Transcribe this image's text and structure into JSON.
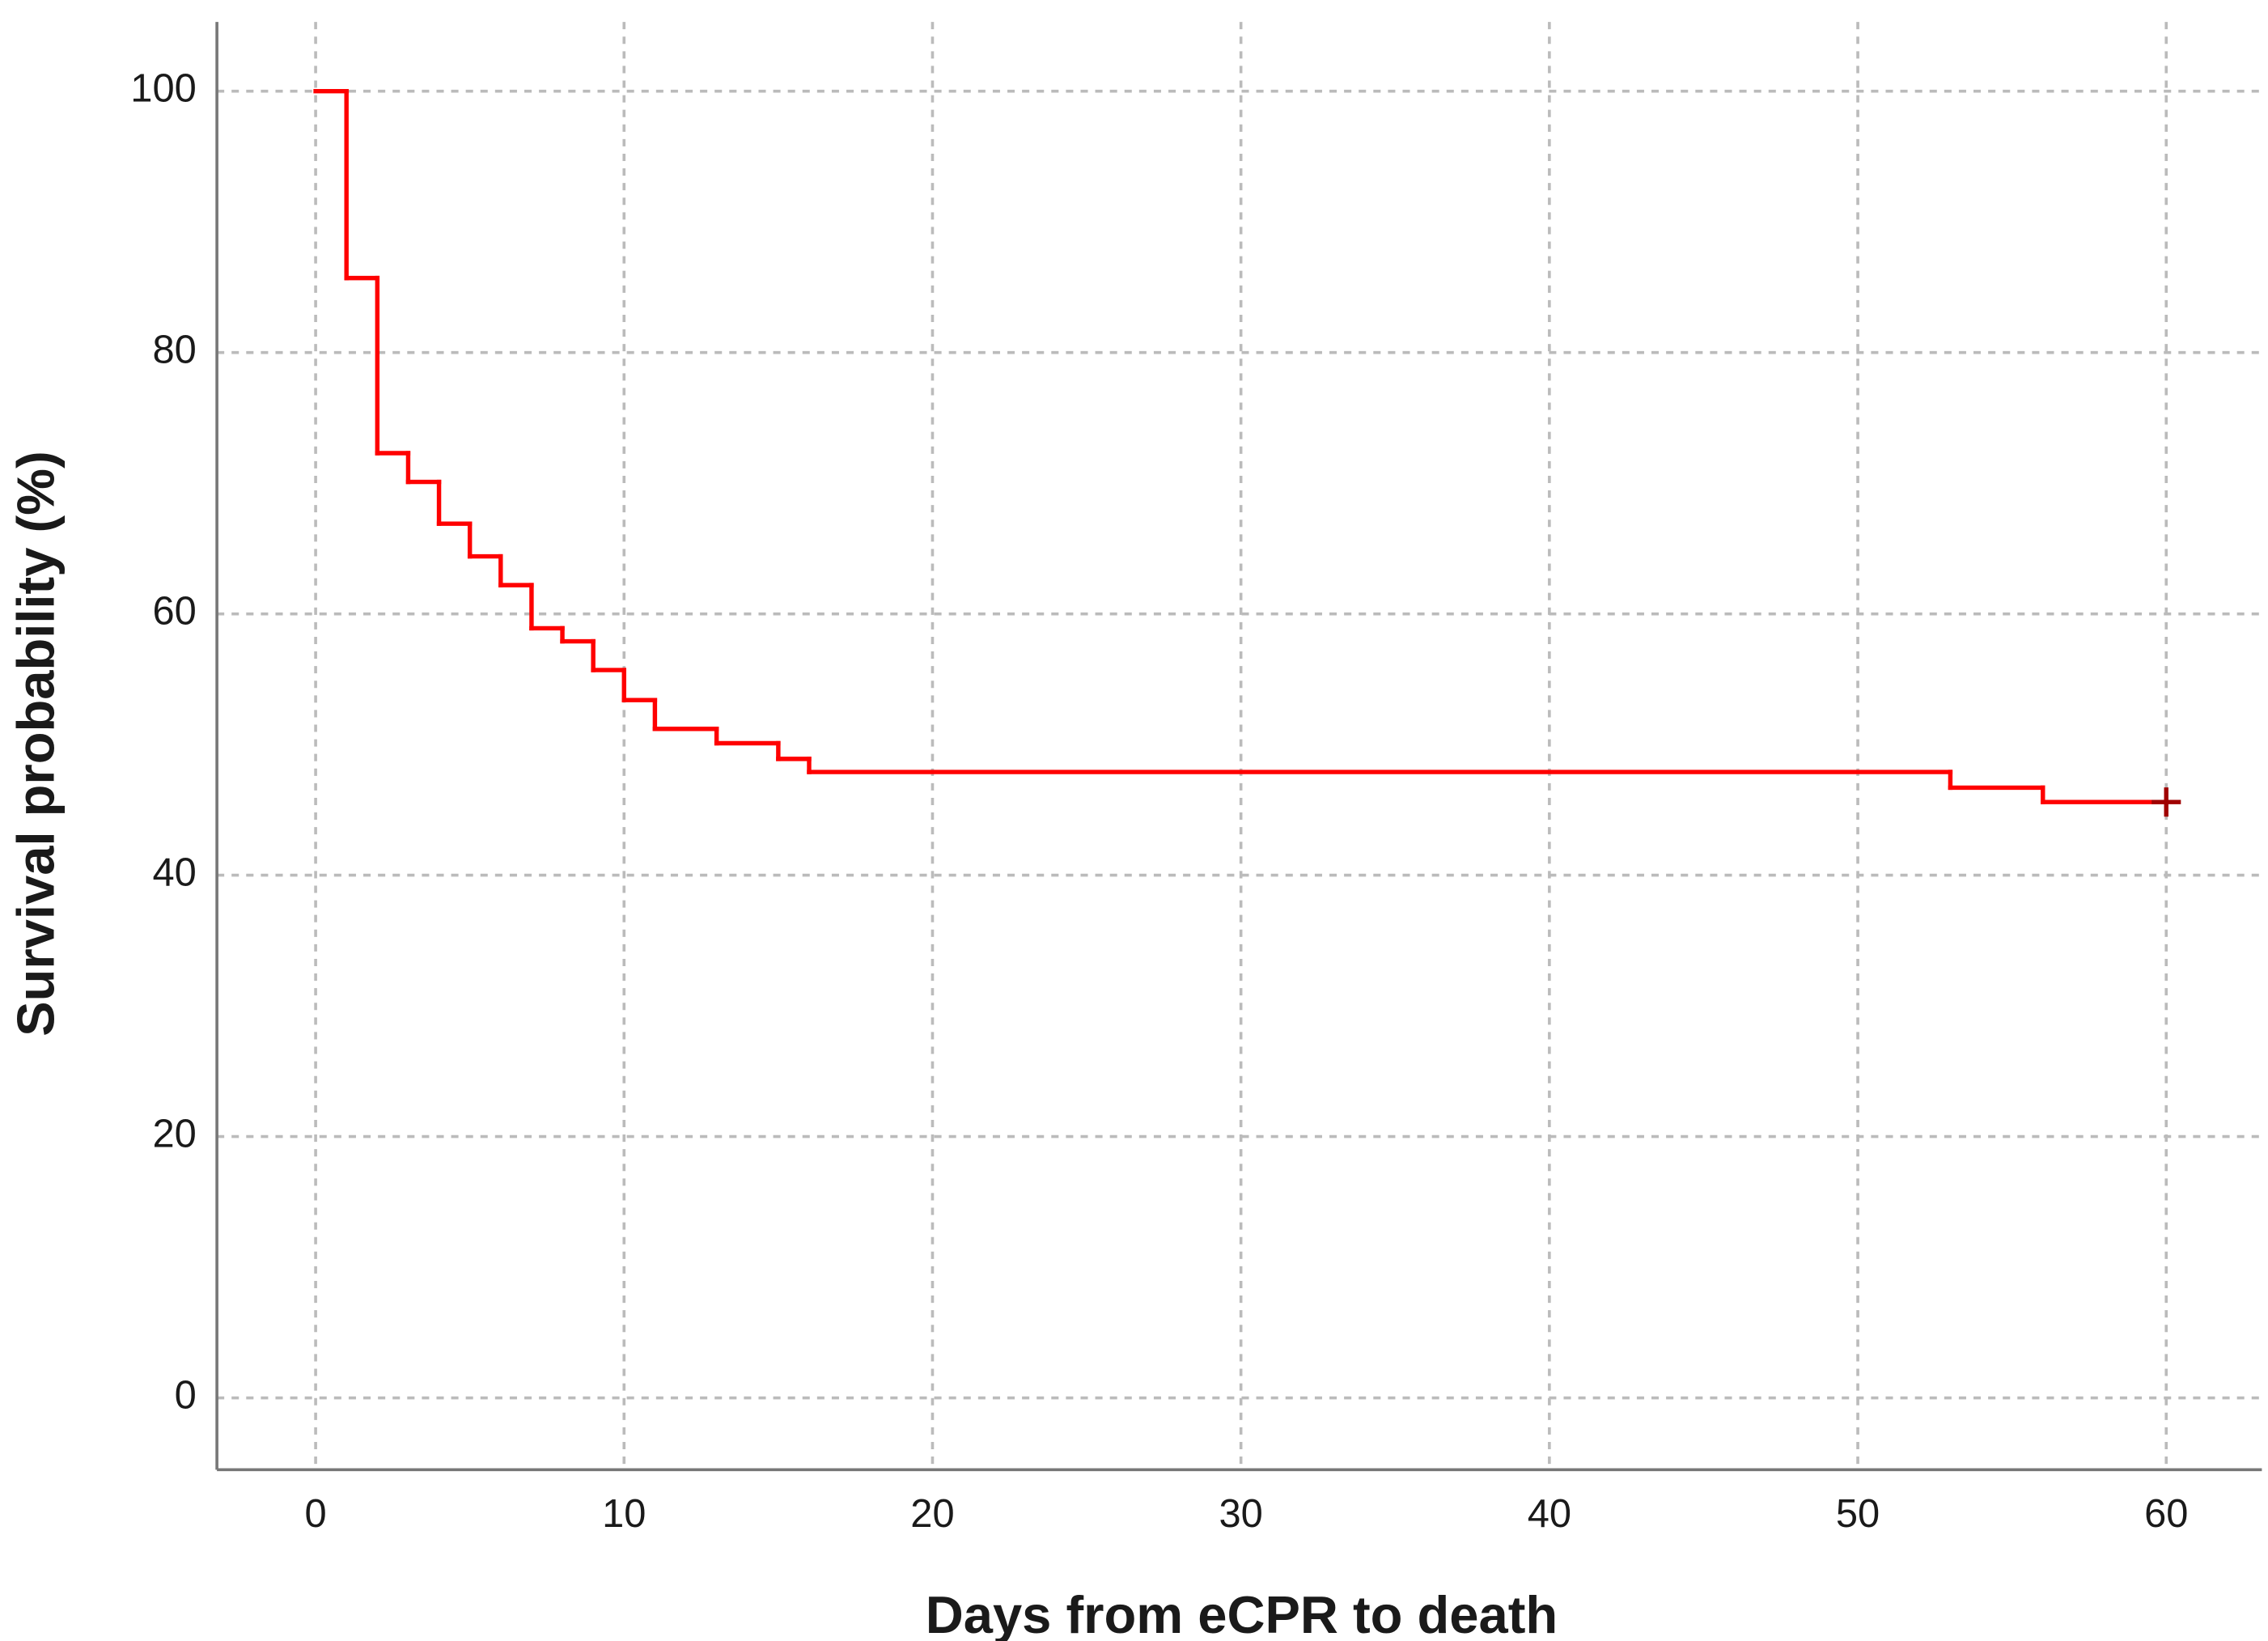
{
  "chart_data": {
    "type": "step",
    "x_label": "Days from eCPR to death",
    "y_label": "Survival probability (%)",
    "x": [
      0,
      1,
      2,
      3,
      4,
      5,
      6,
      7,
      8,
      9,
      10,
      11,
      13,
      15,
      16,
      53,
      56,
      60
    ],
    "values": [
      100,
      85.7,
      72.3,
      70.1,
      66.9,
      64.4,
      62.2,
      58.9,
      57.9,
      55.7,
      53.4,
      51.2,
      50.1,
      48.9,
      47.9,
      46.7,
      45.6,
      45.6
    ],
    "color": "#ff0000",
    "censored": {
      "x": [
        60
      ],
      "values": [
        45.6
      ],
      "color": "#a00000"
    },
    "xlim": [
      -3.2,
      63.1
    ],
    "ylim": [
      -5.5,
      105.3
    ],
    "xticks": [
      0,
      10,
      20,
      30,
      40,
      50,
      60
    ],
    "yticks": [
      0,
      20,
      40,
      60,
      80,
      100
    ],
    "grid": true
  }
}
